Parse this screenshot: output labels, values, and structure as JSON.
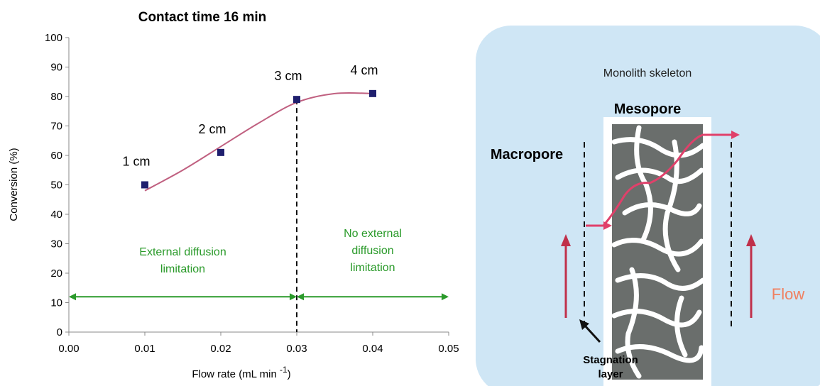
{
  "chart_data": {
    "type": "scatter",
    "title": "Contact time 16 min",
    "xlabel": [
      "Flow rate (mL min ",
      "-1",
      ")"
    ],
    "ylabel": "Conversion (%)",
    "x": [
      0.01,
      0.02,
      0.03,
      0.04
    ],
    "values": [
      50,
      61,
      79,
      81
    ],
    "point_labels": [
      "1 cm",
      "2 cm",
      "3 cm",
      "4 cm"
    ],
    "color": "#1f1f6e",
    "trendline": {
      "color": "#c06080",
      "x": [
        0.01,
        0.015,
        0.02,
        0.025,
        0.03,
        0.035,
        0.04
      ],
      "values": [
        48,
        55,
        63,
        71,
        78,
        81,
        81
      ]
    },
    "xlim": [
      0,
      0.05
    ],
    "xticks": [
      {
        "value": 0,
        "label": "0.00"
      },
      {
        "value": 0.01,
        "label": "0.01"
      },
      {
        "value": 0.02,
        "label": "0.02"
      },
      {
        "value": 0.03,
        "label": "0.03"
      },
      {
        "value": 0.04,
        "label": "0.04"
      },
      {
        "value": 0.05,
        "label": "0.05"
      }
    ],
    "ylim": [
      0,
      100
    ],
    "yticks": [
      0,
      10,
      20,
      30,
      40,
      50,
      60,
      70,
      80,
      90,
      100
    ],
    "divider_x": 0.03,
    "arrow_y": 12,
    "regions": [
      {
        "lines": [
          "External diffusion",
          "limitation"
        ],
        "color": "#2a9a2a"
      },
      {
        "lines": [
          "No external",
          "diffusion",
          "limitation"
        ],
        "color": "#2a9a2a"
      }
    ]
  },
  "diagram": {
    "skeleton": "Monolith skeleton",
    "mesopore": "Mesopore",
    "macropore": "Macropore",
    "flow": "Flow",
    "stagnation": [
      "Stagnation",
      "layer"
    ]
  }
}
